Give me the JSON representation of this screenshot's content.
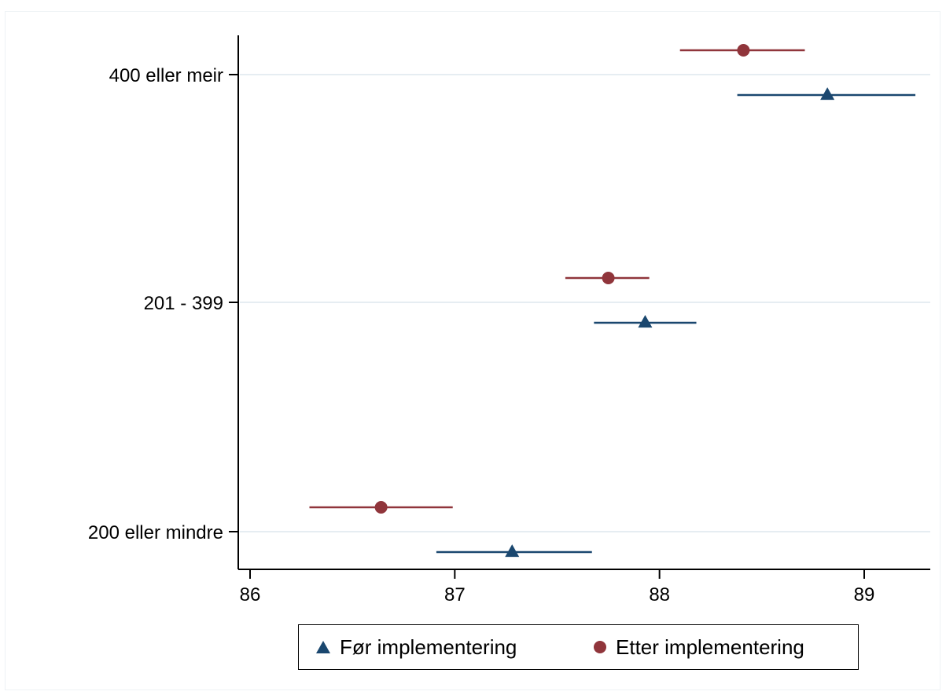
{
  "chart_data": {
    "type": "scatter",
    "y_categories": [
      "400 eller meir",
      "201 - 399",
      "200 eller mindre"
    ],
    "x_ticks": [
      86,
      87,
      88,
      89
    ],
    "xlim": [
      85.95,
      89.3
    ],
    "grid": "horizontal",
    "legend_position": "bottom",
    "series": [
      {
        "name": "Før implementering",
        "color": "#1a476f",
        "marker": "triangle",
        "points": [
          {
            "category": "400 eller meir",
            "value": 88.82,
            "ci": [
              88.38,
              89.25
            ]
          },
          {
            "category": "201 - 399",
            "value": 87.93,
            "ci": [
              87.68,
              88.18
            ]
          },
          {
            "category": "200 eller mindre",
            "value": 87.28,
            "ci": [
              86.91,
              87.67
            ]
          }
        ]
      },
      {
        "name": "Etter implementering",
        "color": "#90353b",
        "marker": "circle",
        "points": [
          {
            "category": "400 eller meir",
            "value": 88.41,
            "ci": [
              88.1,
              88.71
            ]
          },
          {
            "category": "201 - 399",
            "value": 87.75,
            "ci": [
              87.54,
              87.95
            ]
          },
          {
            "category": "200 eller mindre",
            "value": 86.64,
            "ci": [
              86.29,
              86.99
            ]
          }
        ]
      }
    ]
  }
}
